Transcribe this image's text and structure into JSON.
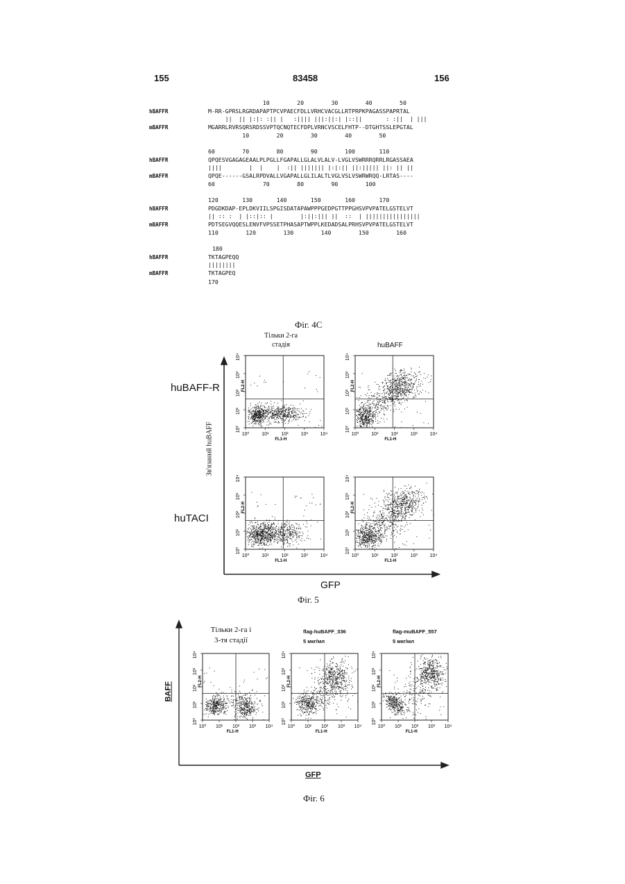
{
  "header": {
    "left_page": "155",
    "patent_no": "83458",
    "right_page": "156"
  },
  "alignment": {
    "blocks": [
      {
        "top_nums": "                10        20        30        40        50",
        "h_label": "hBAFFR",
        "h_seq": "M-RR-GPRSLRGRDAPAPTPCVPAECFDLLVRHCVACGLLRTPRPKPAGASSPAPRTAL",
        "match": "     ||  || |:|: :|| |   :|||| |||:||:| |::||       : :||  | |||",
        "m_label": "mBAFFR",
        "m_seq": "MGARRLRVRSQRSRDSSVPTQCNQTECFDPLVRNCVSCELFHTP--DTGHTSSLEPGTAL",
        "bot_nums": "          10        20        30        40        50"
      },
      {
        "top_nums": "60        70        80        90        100       110",
        "h_label": "hBAFFR",
        "h_seq": "QPQESVGAGAGEAALPLPGLLFGAPALLGLALVLALV-LVGLVSWRRRQRRLRGASSAEA",
        "match": "||||        |  |    |  :|| ||||||| |:|:|| ||:||||| ||: || ||",
        "m_label": "mBAFFR",
        "m_seq": "QPQE------GSALRPDVALLVGAPALLGLILALTLVGLVSLVSWRWRQQ-LRTAS----",
        "bot_nums": "60              70        80        90        100"
      },
      {
        "top_nums": "120       130       140       150       160       170",
        "h_label": "hBAFFR",
        "h_seq": "PDGDKDAP-EPLDKVIILSPGISDATAPAWPPPGEDPGTTPPGHSVPVPATELGSTELVT",
        "match": "|| :: :  | |::|:: |        |:||:||| ||  ::  | ||||||||||||||||",
        "m_label": "mBAFFR",
        "m_seq": "PDTSEGVQQESLENVFVPSSETPHASAPTWPPLKEDADSALPRHSVPVPATELGSTELVT",
        "bot_nums": "110        120        130        140        150        160"
      },
      {
        "top_nums": "180",
        "h_label": "hBAFFR",
        "h_seq": "TKTAGPEQQ",
        "match": "||||||||",
        "m_label": "mBAFFR",
        "m_seq": "TKTAGPEQ",
        "bot_nums": "170"
      }
    ]
  },
  "fig4c": {
    "caption": "Фіг. 4С"
  },
  "fig5": {
    "col1_title": "Тільки 2-га\nстадія",
    "col2_title": "huBAFF",
    "row1_label": "huBAFF-R",
    "row2_label": "huTACI",
    "y_axis_label": "Зв'язаний  huBAFF",
    "x_axis_label": "GFP",
    "caption": "Фіг. 5",
    "axis_x_name": "FL1-H",
    "axis_y_name": "FL2-H",
    "ticks": [
      "10⁰",
      "10¹",
      "10²",
      "10³",
      "10⁴"
    ]
  },
  "fig6": {
    "col1_title": "Тільки 2-га і\n3-тя стадії",
    "col2_title": "flag-huBAFF_336\n5 мкг/мл",
    "col3_title": "flag-muBAFF_557\n5 мкг/мл",
    "y_axis_label": "BAFF",
    "x_axis_label": "GFP",
    "caption": "Фіг. 6",
    "axis_x_name": "FL1-H",
    "axis_y_name": "FL2-H"
  }
}
